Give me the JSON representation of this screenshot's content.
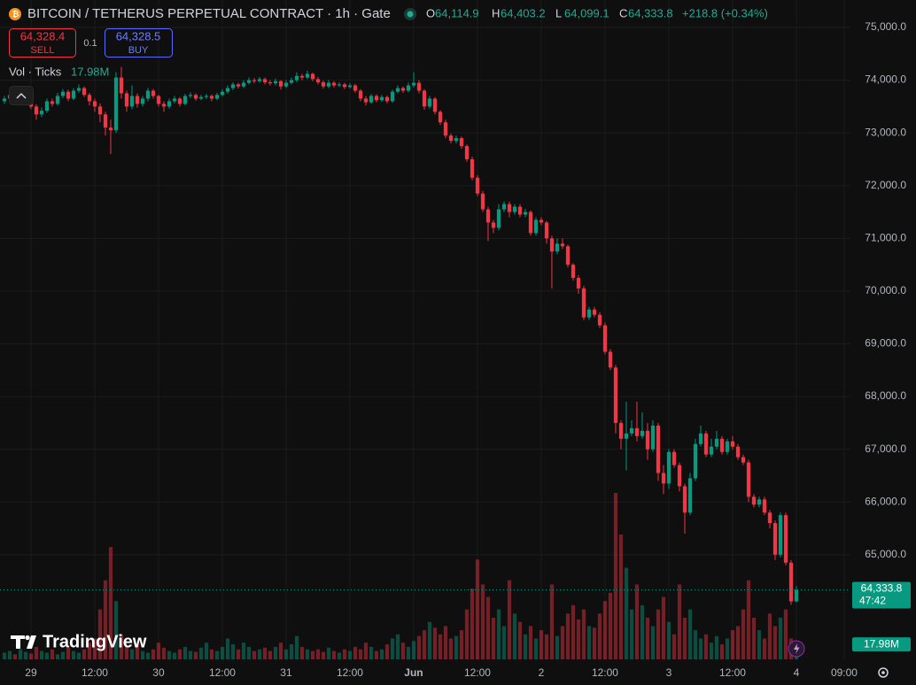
{
  "chart_data": {
    "type": "candlestick",
    "title": "BITCOIN / TETHERUS PERPETUAL CONTRACT · 1h · Gate",
    "legend": {
      "open_label": "O",
      "open": "64,114.9",
      "high_label": "H",
      "high": "64,403.2",
      "low_label": "L",
      "low": "64,099.1",
      "close_label": "C",
      "close": "64,333.8",
      "change": "+218.8 (+0.34%)"
    },
    "trade": {
      "sell_price": "64,328.4",
      "sell": "SELL",
      "spread": "0.1",
      "buy_price": "64,328.5",
      "buy": "BUY"
    },
    "countdown": "47:42",
    "brand": "TradingView",
    "up_color": "#089981",
    "down_color": "#f23645",
    "ylim": [
      63000,
      75520
    ],
    "yticks": [
      {
        "value": 65000,
        "label": "65,000.0"
      },
      {
        "value": 66000,
        "label": "66,000.0"
      },
      {
        "value": 67000,
        "label": "67,000.0"
      },
      {
        "value": 68000,
        "label": "68,000.0"
      },
      {
        "value": 69000,
        "label": "69,000.0"
      },
      {
        "value": 70000,
        "label": "70,000.0"
      },
      {
        "value": 71000,
        "label": "71,000.0"
      },
      {
        "value": 72000,
        "label": "72,000.0"
      },
      {
        "value": 73000,
        "label": "73,000.0"
      },
      {
        "value": 74000,
        "label": "74,000.0"
      },
      {
        "value": 75000,
        "label": "75,000.0"
      }
    ],
    "xlim": [
      -0.83,
      159.17
    ],
    "xticks": [
      {
        "value": 5,
        "label": "29"
      },
      {
        "value": 17,
        "label": "12:00"
      },
      {
        "value": 29,
        "label": "30"
      },
      {
        "value": 41,
        "label": "12:00"
      },
      {
        "value": 53,
        "label": "31"
      },
      {
        "value": 65,
        "label": "12:00"
      },
      {
        "value": 77,
        "label": "Jun"
      },
      {
        "value": 89,
        "label": "12:00"
      },
      {
        "value": 101,
        "label": "2"
      },
      {
        "value": 113,
        "label": "12:00"
      },
      {
        "value": 125,
        "label": "3"
      },
      {
        "value": 137,
        "label": "12:00"
      },
      {
        "value": 149,
        "label": "4"
      },
      {
        "value": 158,
        "label": "09:00"
      }
    ],
    "grid": true,
    "open": [
      73600,
      73650,
      73720,
      73600,
      73680,
      73750,
      73500,
      73350,
      73420,
      73600,
      73550,
      73700,
      73780,
      73650,
      73800,
      73850,
      73720,
      73600,
      73500,
      73350,
      73100,
      73050,
      74050,
      73750,
      73500,
      73700,
      73550,
      73650,
      73800,
      73700,
      73550,
      73500,
      73600,
      73650,
      73550,
      73700,
      73720,
      73650,
      73680,
      73700,
      73650,
      73720,
      73780,
      73850,
      73920,
      73880,
      73950,
      74000,
      73980,
      74020,
      73960,
      73940,
      73980,
      73880,
      73950,
      74000,
      74080,
      74050,
      74120,
      74020,
      73960,
      73880,
      73950,
      73900,
      73920,
      73870,
      73900,
      73800,
      73650,
      73580,
      73700,
      73620,
      73680,
      73600,
      73780,
      73850,
      73800,
      73900,
      73950,
      73800,
      73500,
      73650,
      73400,
      73200,
      72950,
      72850,
      72900,
      72750,
      72500,
      72150,
      71850,
      71550,
      71300,
      71200,
      71550,
      71650,
      71500,
      71600,
      71450,
      71500,
      71100,
      71350,
      71300,
      71000,
      70750,
      70900,
      70850,
      70500,
      70250,
      70050,
      69500,
      69650,
      69550,
      69350,
      68850,
      68550,
      67500,
      67200,
      67300,
      67400,
      67250,
      67350,
      67000,
      67450,
      66550,
      66350,
      66950,
      66700,
      66300,
      65800,
      66450,
      67100,
      67300,
      66900,
      67050,
      67200,
      66950,
      67150,
      67050,
      66850,
      66750,
      66100,
      65950,
      66050,
      65800,
      65600,
      65000,
      65750,
      64850,
      64114.9
    ],
    "high": [
      73700,
      73780,
      73760,
      73720,
      73800,
      73780,
      73540,
      73480,
      73650,
      73650,
      73760,
      73830,
      73820,
      73850,
      73920,
      73880,
      73760,
      73650,
      73560,
      73400,
      73250,
      74150,
      74250,
      73800,
      73900,
      73750,
      73700,
      73850,
      73830,
      73720,
      73600,
      73650,
      73700,
      73680,
      73740,
      73770,
      73750,
      73720,
      73740,
      73730,
      73760,
      73830,
      73900,
      73960,
      73950,
      74000,
      74050,
      74040,
      74060,
      74050,
      74000,
      74030,
      74000,
      74000,
      74050,
      74150,
      74120,
      74180,
      74140,
      74060,
      73990,
      74000,
      73980,
      73960,
      73950,
      73940,
      73930,
      73830,
      73700,
      73740,
      73730,
      73720,
      73710,
      73820,
      73900,
      73880,
      73950,
      74150,
      74000,
      73830,
      73700,
      73680,
      73430,
      73250,
      72990,
      72950,
      72930,
      72780,
      72550,
      72200,
      71900,
      71600,
      71350,
      71650,
      71700,
      71700,
      71650,
      71650,
      71560,
      71530,
      71400,
      71400,
      71330,
      71050,
      71000,
      71000,
      70880,
      70530,
      70300,
      70100,
      69700,
      69700,
      69600,
      69400,
      68900,
      68600,
      67550,
      67900,
      67550,
      67900,
      67700,
      67500,
      67550,
      67500,
      66700,
      67000,
      67000,
      66750,
      66350,
      66550,
      67200,
      67450,
      67350,
      67200,
      67350,
      67250,
      67200,
      67250,
      67100,
      66900,
      66800,
      66150,
      66100,
      66100,
      65850,
      65650,
      65800,
      65800,
      64900,
      64403.2
    ],
    "low": [
      73550,
      73600,
      73550,
      73560,
      73640,
      73450,
      73250,
      73300,
      73380,
      73500,
      73520,
      73660,
      73600,
      73620,
      73760,
      73680,
      73520,
      73400,
      73200,
      72950,
      72600,
      73000,
      73650,
      73400,
      73450,
      73480,
      73500,
      73600,
      73650,
      73500,
      73400,
      73460,
      73560,
      73500,
      73520,
      73660,
      73610,
      73620,
      73640,
      73600,
      73620,
      73690,
      73740,
      73810,
      73840,
      73850,
      73920,
      73940,
      73950,
      73920,
      73900,
      73900,
      73820,
      73850,
      73920,
      73960,
      74000,
      74020,
      73980,
      73920,
      73840,
      73850,
      73860,
      73870,
      73830,
      73840,
      73760,
      73600,
      73520,
      73550,
      73580,
      73590,
      73560,
      73570,
      73750,
      73760,
      73770,
      73860,
      73750,
      73440,
      73460,
      73350,
      73150,
      72900,
      72800,
      72800,
      72700,
      72450,
      72100,
      71800,
      71500,
      70950,
      71100,
      71150,
      71500,
      71400,
      71450,
      71400,
      71400,
      71050,
      71050,
      71250,
      70900,
      70050,
      70700,
      70800,
      70450,
      70200,
      69950,
      69450,
      69450,
      69500,
      69300,
      68800,
      68500,
      67300,
      67000,
      66600,
      67250,
      67150,
      67200,
      66800,
      66950,
      66400,
      66150,
      66250,
      66650,
      66200,
      65400,
      65750,
      66400,
      67050,
      66850,
      66850,
      67000,
      66900,
      66900,
      67000,
      66800,
      66700,
      66000,
      65900,
      65900,
      65750,
      65500,
      64900,
      64950,
      64800,
      64050,
      64099.1
    ],
    "close": [
      73650,
      73720,
      73600,
      73680,
      73750,
      73500,
      73350,
      73420,
      73600,
      73550,
      73700,
      73780,
      73650,
      73800,
      73850,
      73720,
      73600,
      73500,
      73350,
      73100,
      73050,
      74050,
      73750,
      73500,
      73700,
      73550,
      73650,
      73800,
      73700,
      73550,
      73500,
      73600,
      73650,
      73550,
      73700,
      73720,
      73650,
      73680,
      73700,
      73650,
      73720,
      73780,
      73850,
      73920,
      73880,
      73950,
      74000,
      73980,
      74020,
      73960,
      73940,
      73980,
      73880,
      73950,
      74000,
      74080,
      74050,
      74120,
      74020,
      73960,
      73880,
      73950,
      73900,
      73920,
      73870,
      73900,
      73800,
      73650,
      73580,
      73700,
      73620,
      73680,
      73600,
      73780,
      73850,
      73800,
      73900,
      73950,
      73800,
      73500,
      73650,
      73400,
      73200,
      72950,
      72850,
      72900,
      72750,
      72500,
      72150,
      71850,
      71550,
      71300,
      71200,
      71550,
      71650,
      71500,
      71600,
      71450,
      71500,
      71100,
      71350,
      71300,
      71000,
      70750,
      70900,
      70850,
      70500,
      70250,
      70050,
      69500,
      69650,
      69550,
      69350,
      68850,
      68550,
      67500,
      67200,
      67300,
      67400,
      67250,
      67350,
      67000,
      67450,
      66550,
      66350,
      66950,
      66700,
      66300,
      65800,
      66450,
      67100,
      67300,
      66900,
      67050,
      67200,
      66950,
      67150,
      67050,
      66850,
      66750,
      66100,
      65950,
      66050,
      65800,
      65600,
      65000,
      65750,
      64850,
      64114.9,
      64333.8
    ],
    "volume": {
      "name": "Vol · Ticks",
      "last_label": "17.98M",
      "values": [
        8,
        10,
        6,
        12,
        9,
        7,
        15,
        10,
        8,
        12,
        6,
        9,
        14,
        10,
        8,
        12,
        20,
        25,
        60,
        95,
        135,
        70,
        30,
        15,
        12,
        18,
        10,
        8,
        12,
        20,
        14,
        10,
        8,
        12,
        15,
        10,
        9,
        14,
        20,
        12,
        10,
        15,
        25,
        18,
        12,
        20,
        15,
        10,
        12,
        14,
        10,
        15,
        20,
        12,
        18,
        28,
        15,
        12,
        10,
        12,
        9,
        14,
        10,
        8,
        12,
        10,
        15,
        12,
        20,
        15,
        10,
        12,
        18,
        25,
        30,
        20,
        15,
        22,
        28,
        35,
        45,
        38,
        30,
        40,
        25,
        28,
        35,
        60,
        85,
        120,
        90,
        75,
        50,
        60,
        40,
        95,
        55,
        45,
        30,
        40,
        25,
        35,
        30,
        90,
        28,
        40,
        55,
        65,
        48,
        60,
        40,
        38,
        55,
        70,
        80,
        200,
        150,
        110,
        60,
        90,
        65,
        50,
        40,
        60,
        75,
        45,
        30,
        90,
        50,
        60,
        35,
        25,
        30,
        20,
        28,
        18,
        25,
        35,
        40,
        60,
        95,
        50,
        35,
        25,
        55,
        40,
        50,
        60,
        25,
        17.98
      ]
    }
  }
}
